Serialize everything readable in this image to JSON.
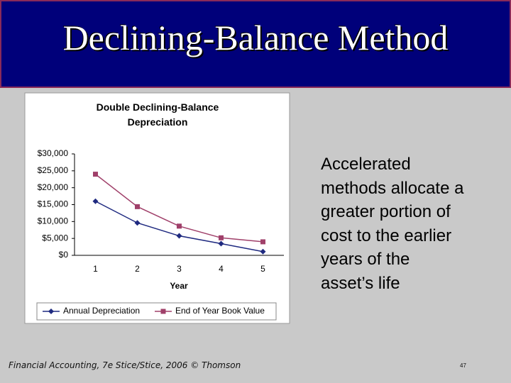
{
  "header": {
    "title": "Declining-Balance Method"
  },
  "chart_data": {
    "type": "line",
    "title": "Double Declining-Balance Depreciation",
    "x_label": "Year",
    "categories": [
      "1",
      "2",
      "3",
      "4",
      "5"
    ],
    "series": [
      {
        "name": "Annual Depreciation",
        "color": "#1f2a80",
        "marker": "diamond",
        "values": [
          16000,
          9600,
          5760,
          3456,
          1100
        ]
      },
      {
        "name": "End of Year Book Value",
        "color": "#a0406a",
        "marker": "square",
        "values": [
          24000,
          14400,
          8640,
          5184,
          4000
        ]
      }
    ],
    "ylim": [
      0,
      30000
    ],
    "yticks": [
      {
        "value": 0,
        "label": "$0"
      },
      {
        "value": 5000,
        "label": "$5,000"
      },
      {
        "value": 10000,
        "label": "$10,000"
      },
      {
        "value": 15000,
        "label": "$15,000"
      },
      {
        "value": 20000,
        "label": "$20,000"
      },
      {
        "value": 25000,
        "label": "$25,000"
      },
      {
        "value": 30000,
        "label": "$30,000"
      }
    ],
    "legend": "bottom"
  },
  "body": {
    "lines": [
      "Accelerated",
      "methods allocate a",
      "greater portion of",
      "cost to the earlier",
      "years of the",
      "asset’s life"
    ]
  },
  "footer": {
    "source": "Financial Accounting, 7e Stice/Stice, 2006 © Thomson",
    "page": "47"
  }
}
